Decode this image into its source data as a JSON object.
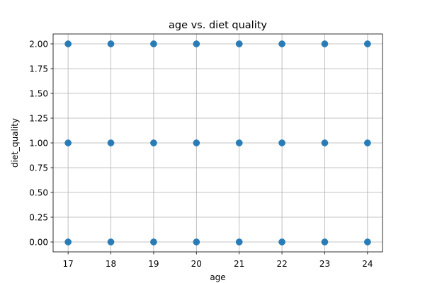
{
  "chart_data": {
    "type": "scatter",
    "title": "age vs. diet quality",
    "xlabel": "age",
    "ylabel": "diet_quality",
    "x_ticks": [
      "17",
      "18",
      "19",
      "20",
      "21",
      "22",
      "23",
      "24"
    ],
    "y_ticks": [
      "0.00",
      "0.25",
      "0.50",
      "0.75",
      "1.00",
      "1.25",
      "1.50",
      "1.75",
      "2.00"
    ],
    "xlim": [
      16.65,
      24.35
    ],
    "ylim": [
      -0.1,
      2.1
    ],
    "grid": true,
    "legend": "none",
    "marker_color": "#1f77b4",
    "grid_color": "#b0b0b0",
    "points": [
      {
        "x": 17,
        "y": 0
      },
      {
        "x": 17,
        "y": 1
      },
      {
        "x": 17,
        "y": 2
      },
      {
        "x": 18,
        "y": 0
      },
      {
        "x": 18,
        "y": 1
      },
      {
        "x": 18,
        "y": 2
      },
      {
        "x": 19,
        "y": 0
      },
      {
        "x": 19,
        "y": 1
      },
      {
        "x": 19,
        "y": 2
      },
      {
        "x": 20,
        "y": 0
      },
      {
        "x": 20,
        "y": 1
      },
      {
        "x": 20,
        "y": 2
      },
      {
        "x": 21,
        "y": 0
      },
      {
        "x": 21,
        "y": 1
      },
      {
        "x": 21,
        "y": 2
      },
      {
        "x": 22,
        "y": 0
      },
      {
        "x": 22,
        "y": 1
      },
      {
        "x": 22,
        "y": 2
      },
      {
        "x": 23,
        "y": 0
      },
      {
        "x": 23,
        "y": 1
      },
      {
        "x": 23,
        "y": 2
      },
      {
        "x": 24,
        "y": 0
      },
      {
        "x": 24,
        "y": 1
      },
      {
        "x": 24,
        "y": 2
      }
    ]
  }
}
